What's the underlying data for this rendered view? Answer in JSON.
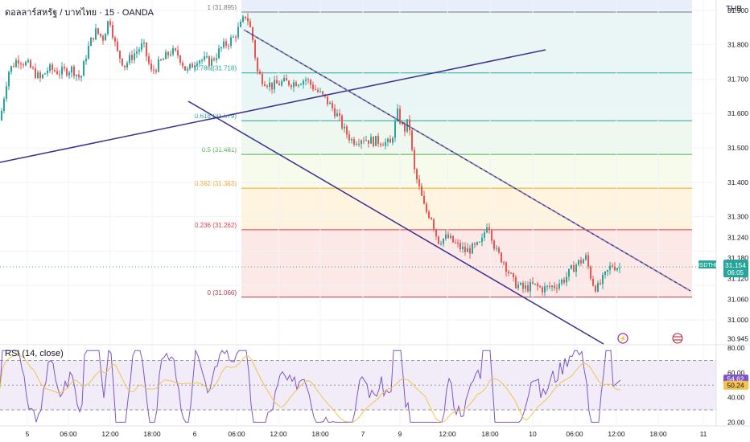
{
  "header": {
    "title": "ดอลลาร์สหรัฐ / บาทไทย · 15 · OANDA",
    "currency_button": "THB"
  },
  "price_axis": {
    "ticks": [
      "31.900",
      "31.800",
      "31.700",
      "31.600",
      "31.500",
      "31.400",
      "31.300",
      "31.240",
      "31.180",
      "31.120",
      "31.060",
      "31.000",
      "30.945"
    ],
    "current": {
      "symbol": "USDTHB",
      "price": "31.154",
      "countdown": "06:05",
      "color": "#26a69a"
    }
  },
  "rsi_axis": {
    "ticks": [
      "80.00",
      "60.00",
      "40.00",
      "20.00"
    ],
    "badge_rsi": "54.62",
    "badge_ma": "50.24"
  },
  "rsi_panel": {
    "title": "RSI (14, close)"
  },
  "time_axis": {
    "labels": [
      "5",
      "06:00",
      "12:00",
      "18:00",
      "6",
      "06:00",
      "12:00",
      "18:00",
      "7",
      "9",
      "12:00",
      "18:00",
      "10",
      "06:00",
      "12:00",
      "18:00",
      "11"
    ]
  },
  "fib_levels": [
    {
      "label": "1 (31.895)",
      "price": 31.895,
      "color": "#787b86"
    },
    {
      "label": "0.786 (31.718)",
      "price": 31.718,
      "color": "#26a69a"
    },
    {
      "label": "0.618 (31.579)",
      "price": 31.579,
      "color": "#26a69a"
    },
    {
      "label": "0.5 (31.481)",
      "price": 31.481,
      "color": "#4caf50"
    },
    {
      "label": "0.382 (31.383)",
      "price": 31.383,
      "color": "#f6a21b"
    },
    {
      "label": "0.236 (31.262)",
      "price": 31.262,
      "color": "#f23645"
    },
    {
      "label": "0 (31.066)",
      "price": 31.066,
      "color": "#b5384b"
    }
  ],
  "colors": {
    "up": "#26a69a",
    "down": "#ef5350",
    "channel": "#3c2f8f",
    "rsi_line": "#7e57c2",
    "rsi_ma": "#f5c34d",
    "grid": "#f0f3fa"
  },
  "chart_data": {
    "type": "candlestick",
    "symbol": "USDTHB",
    "interval": "15",
    "ylim": [
      30.93,
      31.93
    ],
    "close_path": [
      {
        "t": 0,
        "p": 31.58
      },
      {
        "t": 10,
        "p": 31.72
      },
      {
        "t": 22,
        "p": 31.76
      },
      {
        "t": 35,
        "p": 31.74
      },
      {
        "t": 50,
        "p": 31.7
      },
      {
        "t": 60,
        "p": 31.73
      },
      {
        "t": 75,
        "p": 31.72
      },
      {
        "t": 90,
        "p": 31.73
      },
      {
        "t": 100,
        "p": 31.7
      },
      {
        "t": 108,
        "p": 31.78
      },
      {
        "t": 118,
        "p": 31.84
      },
      {
        "t": 128,
        "p": 31.82
      },
      {
        "t": 136,
        "p": 31.88
      },
      {
        "t": 145,
        "p": 31.78
      },
      {
        "t": 155,
        "p": 31.74
      },
      {
        "t": 165,
        "p": 31.77
      },
      {
        "t": 178,
        "p": 31.8
      },
      {
        "t": 188,
        "p": 31.72
      },
      {
        "t": 200,
        "p": 31.75
      },
      {
        "t": 212,
        "p": 31.78
      },
      {
        "t": 222,
        "p": 31.77
      },
      {
        "t": 232,
        "p": 31.72
      },
      {
        "t": 245,
        "p": 31.76
      },
      {
        "t": 262,
        "p": 31.75
      },
      {
        "t": 275,
        "p": 31.79
      },
      {
        "t": 290,
        "p": 31.82
      },
      {
        "t": 300,
        "p": 31.86
      },
      {
        "t": 306,
        "p": 31.89
      },
      {
        "t": 313,
        "p": 31.83
      },
      {
        "t": 320,
        "p": 31.72
      },
      {
        "t": 326,
        "p": 31.7
      },
      {
        "t": 338,
        "p": 31.68
      },
      {
        "t": 350,
        "p": 31.69
      },
      {
        "t": 365,
        "p": 31.69
      },
      {
        "t": 380,
        "p": 31.7
      },
      {
        "t": 392,
        "p": 31.67
      },
      {
        "t": 405,
        "p": 31.64
      },
      {
        "t": 418,
        "p": 31.6
      },
      {
        "t": 428,
        "p": 31.55
      },
      {
        "t": 438,
        "p": 31.52
      },
      {
        "t": 450,
        "p": 31.53
      },
      {
        "t": 462,
        "p": 31.52
      },
      {
        "t": 474,
        "p": 31.52
      },
      {
        "t": 485,
        "p": 31.51
      },
      {
        "t": 494,
        "p": 31.6
      },
      {
        "t": 502,
        "p": 31.55
      },
      {
        "t": 508,
        "p": 31.58
      },
      {
        "t": 514,
        "p": 31.44
      },
      {
        "t": 520,
        "p": 31.39
      },
      {
        "t": 528,
        "p": 31.32
      },
      {
        "t": 536,
        "p": 31.3
      },
      {
        "t": 544,
        "p": 31.23
      },
      {
        "t": 556,
        "p": 31.24
      },
      {
        "t": 566,
        "p": 31.22
      },
      {
        "t": 578,
        "p": 31.2
      },
      {
        "t": 590,
        "p": 31.21
      },
      {
        "t": 598,
        "p": 31.22
      },
      {
        "t": 606,
        "p": 31.29
      },
      {
        "t": 616,
        "p": 31.2
      },
      {
        "t": 626,
        "p": 31.17
      },
      {
        "t": 638,
        "p": 31.11
      },
      {
        "t": 650,
        "p": 31.09
      },
      {
        "t": 662,
        "p": 31.1
      },
      {
        "t": 675,
        "p": 31.09
      },
      {
        "t": 690,
        "p": 31.1
      },
      {
        "t": 702,
        "p": 31.12
      },
      {
        "t": 715,
        "p": 31.16
      },
      {
        "t": 728,
        "p": 31.18
      },
      {
        "t": 736,
        "p": 31.11
      },
      {
        "t": 742,
        "p": 31.09
      },
      {
        "t": 750,
        "p": 31.12
      },
      {
        "t": 760,
        "p": 31.16
      },
      {
        "t": 772,
        "p": 31.15
      }
    ],
    "rsi_ylim": [
      17,
      82
    ],
    "rsi_last": 54.62,
    "rsi_ma_last": 50.24,
    "rsi_levels": [
      70,
      50,
      30
    ]
  }
}
